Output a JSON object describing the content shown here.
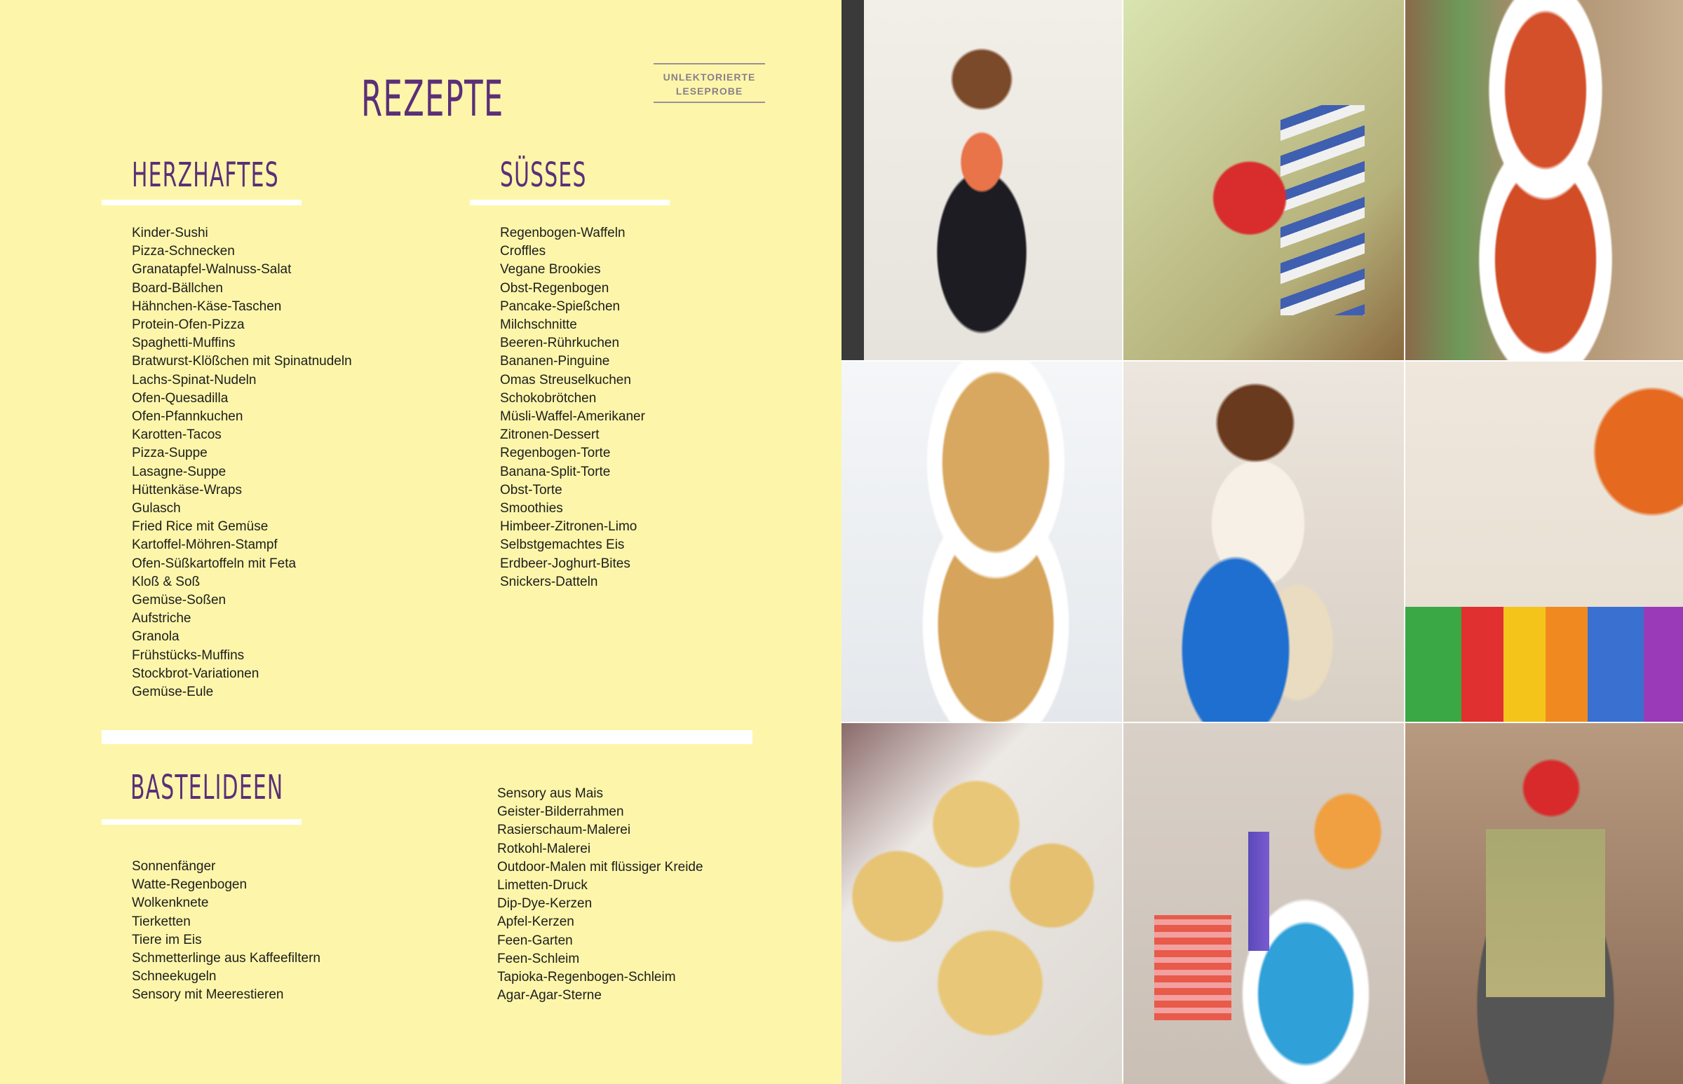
{
  "page_title": "Rezepte",
  "stamp": {
    "line1": "UNLEKTORIERTE",
    "line2": "LESEPROBE"
  },
  "sections": {
    "herzhaftes": {
      "heading": "Herzhaftes",
      "items": [
        "Kinder-Sushi",
        "Pizza-Schnecken",
        "Granatapfel-Walnuss-Salat",
        "Board-Bällchen",
        "Hähnchen-Käse-Taschen",
        "Protein-Ofen-Pizza",
        "Spaghetti-Muffins",
        "Bratwurst-Klößchen mit Spinatnudeln",
        "Lachs-Spinat-Nudeln",
        "Ofen-Quesadilla",
        "Ofen-Pfannkuchen",
        "Karotten-Tacos",
        "Pizza-Suppe",
        "Lasagne-Suppe",
        "Hüttenkäse-Wraps",
        "Gulasch",
        "Fried Rice mit Gemüse",
        "Kartoffel-Möhren-Stampf",
        "Ofen-Süßkartoffeln mit Feta",
        "Kloß & Soß",
        "Gemüse-Soßen",
        "Aufstriche",
        "Granola",
        "Frühstücks-Muffins",
        "Stockbrot-Variationen",
        "Gemüse-Eule"
      ]
    },
    "suesses": {
      "heading": "Süsses",
      "items": [
        "Regenbogen-Waffeln",
        "Croffles",
        "Vegane Brookies",
        "Obst-Regenbogen",
        "Pancake-Spießchen",
        "Milchschnitte",
        "Beeren-Rührkuchen",
        "Bananen-Pinguine",
        "Omas Streuselkuchen",
        "Schokobrötchen",
        "Müsli-Waffel-Amerikaner",
        "Zitronen-Dessert",
        "Regenbogen-Torte",
        "Banana-Split-Torte",
        "Obst-Torte",
        "Smoothies",
        "Himbeer-Zitronen-Limo",
        "Selbstgemachtes Eis",
        "Erdbeer-Joghurt-Bites",
        "Snickers-Datteln"
      ]
    },
    "bastelideen": {
      "heading": "Bastelideen",
      "items_left": [
        "Sonnenfänger",
        "Watte-Regenbogen",
        "Wolkenknete",
        "Tierketten",
        "Tiere im Eis",
        "Schmetterlinge aus Kaffeefiltern",
        "Schneekugeln",
        "Sensory mit Meerestieren"
      ],
      "items_right": [
        "Sensory aus Mais",
        "Geister-Bilderrahmen",
        "Rasierschaum-Malerei",
        "Rotkohl-Malerei",
        "Outdoor-Malen mit flüssiger Kreide",
        "Limetten-Druck",
        "Dip-Dye-Kerzen",
        "Apfel-Kerzen",
        "Feen-Garten",
        "Feen-Schleim",
        "Tapioka-Regenbogen-Schleim",
        "Agar-Agar-Sterne"
      ]
    }
  },
  "colors": {
    "background": "#fdf6aa",
    "heading": "#5a2f78",
    "bar": "#ffffff"
  },
  "photos": [
    "woman-with-rainbow-cake",
    "child-sorting-red-discs",
    "tomato-soup-bowls",
    "rice-vegetable-bowls",
    "woman-with-sensory-bin",
    "child-rainbow-rice-play",
    "cheese-muffins",
    "child-with-purple-slime",
    "strawberry-pancake-stack"
  ]
}
